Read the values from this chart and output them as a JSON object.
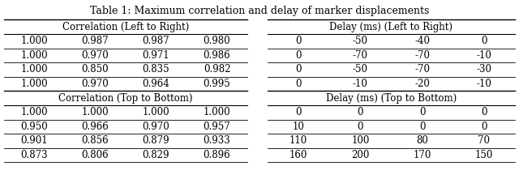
{
  "title": "Table 1: Maximum correlation and delay of marker displacements",
  "left_header1": "Correlation (Left to Right)",
  "left_data1": [
    [
      "1.000",
      "0.987",
      "0.987",
      "0.980"
    ],
    [
      "1.000",
      "0.970",
      "0.971",
      "0.986"
    ],
    [
      "1.000",
      "0.850",
      "0.835",
      "0.982"
    ],
    [
      "1.000",
      "0.970",
      "0.964",
      "0.995"
    ]
  ],
  "left_header2": "Correlation (Top to Bottom)",
  "left_data2": [
    [
      "1.000",
      "1.000",
      "1.000",
      "1.000"
    ],
    [
      "0.950",
      "0.966",
      "0.970",
      "0.957"
    ],
    [
      "0.901",
      "0.856",
      "0.879",
      "0.933"
    ],
    [
      "0.873",
      "0.806",
      "0.829",
      "0.896"
    ]
  ],
  "right_header1": "Delay (ms) (Left to Right)",
  "right_data1": [
    [
      "0",
      "-50",
      "-40",
      "0"
    ],
    [
      "0",
      "-70",
      "-70",
      "-10"
    ],
    [
      "0",
      "-50",
      "-70",
      "-30"
    ],
    [
      "0",
      "-10",
      "-20",
      "-10"
    ]
  ],
  "right_header2": "Delay (ms) (Top to Bottom)",
  "right_data2": [
    [
      "0",
      "0",
      "0",
      "0"
    ],
    [
      "10",
      "0",
      "0",
      "0"
    ],
    [
      "110",
      "100",
      "80",
      "70"
    ],
    [
      "160",
      "200",
      "170",
      "150"
    ]
  ],
  "bg_color": "#ffffff",
  "line_color": "#000000",
  "text_color": "#000000",
  "title_fontsize": 9.0,
  "header_fontsize": 8.5,
  "data_fontsize": 8.5
}
